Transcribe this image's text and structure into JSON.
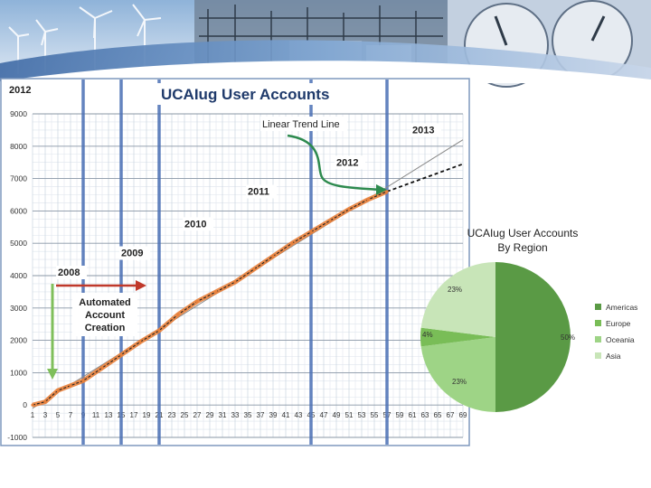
{
  "colors": {
    "americas": "#5a9a45",
    "europe": "#79bd57",
    "oceania": "#9ed486",
    "asia": "#c8e5b8",
    "trend_actual": "#e8803a",
    "year_marker": "#4a6fb5",
    "arrow_green": "#2d8a4e",
    "arrow_red": "#c0392b",
    "title_blue": "#1f3a6b"
  },
  "chart_data": [
    {
      "type": "line",
      "title": "UCAIug User Accounts",
      "corner_label": "2012",
      "ylim": [
        -1000,
        9000
      ],
      "yticks": [
        -1000,
        0,
        1000,
        2000,
        3000,
        4000,
        5000,
        6000,
        7000,
        8000,
        9000
      ],
      "xlim": [
        1,
        69
      ],
      "xticks": [
        1,
        3,
        5,
        7,
        9,
        11,
        13,
        15,
        17,
        19,
        21,
        23,
        25,
        27,
        29,
        31,
        33,
        35,
        37,
        39,
        41,
        43,
        45,
        47,
        49,
        51,
        53,
        55,
        57,
        59,
        61,
        63,
        65,
        67,
        69
      ],
      "grid": true,
      "series": [
        {
          "x": [
            1,
            3,
            5,
            7,
            9,
            12,
            15,
            18,
            21,
            24,
            27,
            30,
            33,
            36,
            39,
            42,
            45,
            48,
            51,
            54,
            57
          ],
          "y": [
            0,
            100,
            450,
            600,
            750,
            1150,
            1550,
            1950,
            2300,
            2800,
            3200,
            3500,
            3800,
            4200,
            4600,
            5000,
            5350,
            5700,
            6050,
            6350,
            6600
          ]
        }
      ],
      "trend_lines": [
        {
          "kind": "linear",
          "x": [
            1,
            69
          ],
          "y": [
            -100,
            8200
          ]
        },
        {
          "kind": "projection",
          "x": [
            57,
            69
          ],
          "y": [
            6600,
            7450
          ]
        }
      ],
      "year_markers": [
        {
          "label": "2008",
          "x": 9,
          "label_x": 5,
          "label_y": 4000
        },
        {
          "label": "2009",
          "x": 15,
          "label_x": 15,
          "label_y": 4600
        },
        {
          "label": "2010",
          "x": 21,
          "label_x": 25,
          "label_y": 5500
        },
        {
          "label": "2011",
          "x": 45,
          "label_x": 35,
          "label_y": 6500
        },
        {
          "label": "2012",
          "x": 57,
          "label_x": 49,
          "label_y": 7400
        },
        {
          "label": "2013",
          "x": 69,
          "label_x": 61,
          "label_y": 8400
        }
      ],
      "annotations": [
        {
          "text_lines": [
            "Automated",
            "Account",
            "Creation"
          ],
          "x": 10,
          "y": 3200
        },
        {
          "text": "Linear Trend Line",
          "x": 40,
          "y": 8800
        }
      ]
    },
    {
      "type": "pie",
      "title_lines": [
        "UCAIug  User Accounts",
        "By Region"
      ],
      "slices": [
        {
          "label": "Americas",
          "value": 50,
          "display": "50%"
        },
        {
          "label": "Oceania",
          "value": 23,
          "display": "23%"
        },
        {
          "label": "Europe",
          "value": 4,
          "display": "4%"
        },
        {
          "label": "Asia",
          "value": 23,
          "display": "23%"
        }
      ],
      "legend_order": [
        "Americas",
        "Europe",
        "Oceania",
        "Asia"
      ],
      "legend_placement": "right"
    }
  ]
}
